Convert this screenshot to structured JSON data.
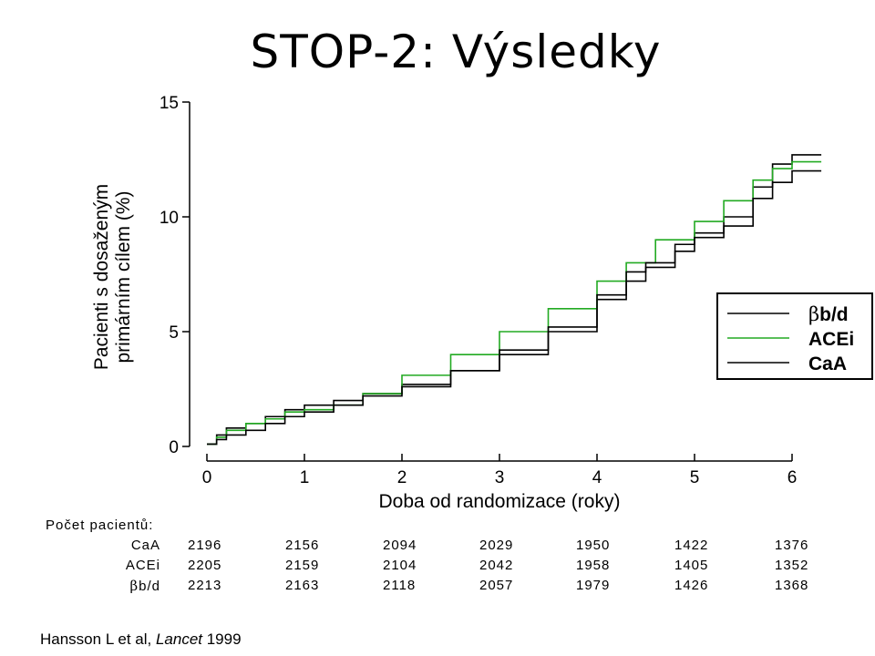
{
  "title": "STOP-2: Výsledky",
  "chart_data": {
    "type": "line",
    "step": true,
    "xlabel": "Doba od randomizace (roky)",
    "ylabel_line1": "Pacienti s dosaženým",
    "ylabel_line2": "primárním cílem (%)",
    "xlim": [
      0,
      6
    ],
    "ylim": [
      0,
      15
    ],
    "x_ticks": [
      "0",
      "1",
      "2",
      "3",
      "4",
      "5",
      "6"
    ],
    "y_ticks": [
      "0",
      "5",
      "10",
      "15"
    ],
    "legend": {
      "position": "right",
      "entries": [
        {
          "label_greek": "β",
          "label_rest": "b/d",
          "color": "#000000"
        },
        {
          "label_greek": "",
          "label_rest": "ACEi",
          "color": "#22aa22"
        },
        {
          "label_greek": "",
          "label_rest": "CaA",
          "color": "#000000"
        }
      ]
    },
    "series": [
      {
        "name": "βb/d",
        "color": "#000000",
        "points": [
          [
            0,
            0.1
          ],
          [
            0.1,
            0.5
          ],
          [
            0.2,
            0.8
          ],
          [
            0.4,
            1.0
          ],
          [
            0.6,
            1.3
          ],
          [
            0.8,
            1.6
          ],
          [
            1.0,
            1.8
          ],
          [
            1.3,
            2.0
          ],
          [
            1.6,
            2.3
          ],
          [
            2.0,
            2.7
          ],
          [
            2.5,
            3.3
          ],
          [
            3.0,
            4.0
          ],
          [
            3.5,
            5.0
          ],
          [
            4.0,
            6.4
          ],
          [
            4.3,
            7.2
          ],
          [
            4.5,
            7.8
          ],
          [
            4.8,
            8.8
          ],
          [
            5.0,
            9.3
          ],
          [
            5.3,
            10.0
          ],
          [
            5.6,
            11.3
          ],
          [
            5.8,
            12.3
          ],
          [
            6.0,
            12.7
          ],
          [
            6.3,
            12.7
          ]
        ]
      },
      {
        "name": "ACEi",
        "color": "#22aa22",
        "points": [
          [
            0,
            0.1
          ],
          [
            0.1,
            0.4
          ],
          [
            0.2,
            0.7
          ],
          [
            0.4,
            1.0
          ],
          [
            0.6,
            1.2
          ],
          [
            0.8,
            1.5
          ],
          [
            1.0,
            1.6
          ],
          [
            1.3,
            1.8
          ],
          [
            1.6,
            2.3
          ],
          [
            2.0,
            3.1
          ],
          [
            2.5,
            4.0
          ],
          [
            3.0,
            5.0
          ],
          [
            3.5,
            6.0
          ],
          [
            4.0,
            7.2
          ],
          [
            4.3,
            8.0
          ],
          [
            4.6,
            9.0
          ],
          [
            5.0,
            9.8
          ],
          [
            5.3,
            10.7
          ],
          [
            5.6,
            11.6
          ],
          [
            5.8,
            12.1
          ],
          [
            6.0,
            12.4
          ],
          [
            6.3,
            12.4
          ]
        ]
      },
      {
        "name": "CaA",
        "color": "#000000",
        "points": [
          [
            0,
            0.1
          ],
          [
            0.1,
            0.3
          ],
          [
            0.2,
            0.5
          ],
          [
            0.4,
            0.7
          ],
          [
            0.6,
            1.0
          ],
          [
            0.8,
            1.3
          ],
          [
            1.0,
            1.5
          ],
          [
            1.3,
            1.8
          ],
          [
            1.6,
            2.2
          ],
          [
            2.0,
            2.6
          ],
          [
            2.5,
            3.3
          ],
          [
            3.0,
            4.2
          ],
          [
            3.5,
            5.2
          ],
          [
            4.0,
            6.6
          ],
          [
            4.3,
            7.6
          ],
          [
            4.5,
            8.0
          ],
          [
            4.8,
            8.5
          ],
          [
            5.0,
            9.1
          ],
          [
            5.3,
            9.6
          ],
          [
            5.6,
            10.8
          ],
          [
            5.8,
            11.5
          ],
          [
            6.0,
            12.0
          ],
          [
            6.3,
            12.0
          ]
        ]
      }
    ]
  },
  "patients_table": {
    "header": "Počet pacientů:",
    "rows": [
      {
        "label_greek": "",
        "label_rest": "CaA",
        "values": [
          "2196",
          "2156",
          "2094",
          "2029",
          "1950",
          "1422",
          "1376"
        ]
      },
      {
        "label_greek": "",
        "label_rest": "ACEi",
        "values": [
          "2205",
          "2159",
          "2104",
          "2042",
          "1958",
          "1405",
          "1352"
        ]
      },
      {
        "label_greek": "β",
        "label_rest": "b/d",
        "values": [
          "2213",
          "2163",
          "2118",
          "2057",
          "1979",
          "1426",
          "1368"
        ]
      }
    ]
  },
  "citation": {
    "authors": "Hansson L et al, ",
    "journal": "Lancet",
    "year": " 1999"
  }
}
